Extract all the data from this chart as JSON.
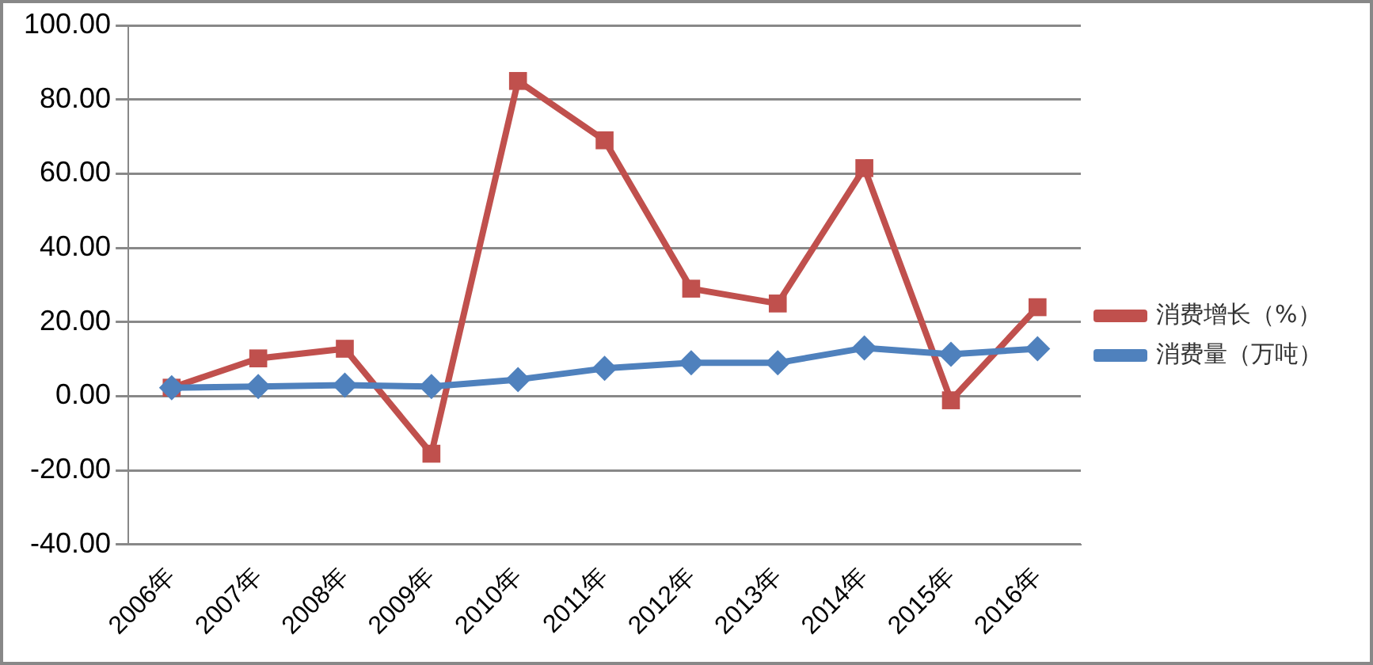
{
  "chart_data": {
    "type": "line",
    "categories": [
      "2006年",
      "2007年",
      "2008年",
      "2009年",
      "2010年",
      "2011年",
      "2012年",
      "2013年",
      "2014年",
      "2015年",
      "2016年"
    ],
    "series": [
      {
        "name": "消费增长（%）",
        "color": "#c0504d",
        "marker": "square",
        "values": [
          2.3,
          10.2,
          12.8,
          -15.5,
          85,
          69,
          29,
          25,
          61.5,
          -1.1,
          24
        ]
      },
      {
        "name": "消费量（万吨）",
        "color": "#4f81bd",
        "marker": "diamond",
        "values": [
          2.3,
          2.6,
          3.0,
          2.6,
          4.5,
          7.5,
          9,
          9,
          13,
          11.3,
          12.8
        ]
      }
    ],
    "ylim": [
      -40,
      100
    ],
    "yticks": [
      {
        "value": -40,
        "label": "-40.00"
      },
      {
        "value": -20,
        "label": "-20.00"
      },
      {
        "value": 0,
        "label": "0.00"
      },
      {
        "value": 20,
        "label": "20.00"
      },
      {
        "value": 40,
        "label": "40.00"
      },
      {
        "value": 60,
        "label": "60.00"
      },
      {
        "value": 80,
        "label": "80.00"
      },
      {
        "value": 100,
        "label": "100.00"
      }
    ],
    "grid": "y",
    "legend": "right"
  }
}
